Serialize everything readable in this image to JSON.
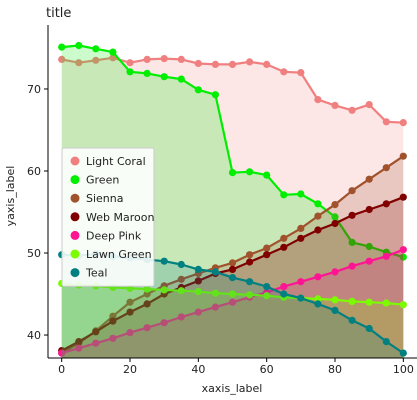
{
  "chart_data": {
    "type": "area",
    "title": "title",
    "xlabel": "xaxis_label",
    "ylabel": "yaxis_label",
    "xlim": [
      -4,
      104
    ],
    "ylim": [
      37.2,
      77.8
    ],
    "x_ticks": [
      0,
      20,
      40,
      60,
      80,
      100
    ],
    "y_ticks": [
      40,
      50,
      60,
      70
    ],
    "grid": false,
    "legend": "left",
    "series": [
      {
        "name": "Light Coral",
        "color": "#f08080",
        "x": [
          0,
          5,
          10,
          15,
          20,
          25,
          30,
          35,
          40,
          45,
          50,
          55,
          60,
          65,
          70,
          75,
          80,
          85,
          90,
          95,
          100
        ],
        "y": [
          73.6,
          73.2,
          73.5,
          73.8,
          73.2,
          73.6,
          73.7,
          73.6,
          73.1,
          73.0,
          73.0,
          73.3,
          73.0,
          72.1,
          72.0,
          68.7,
          68.0,
          67.4,
          68.1,
          66.0,
          65.9
        ]
      },
      {
        "name": "Green",
        "color": "#00ee00",
        "x": [
          0,
          5,
          10,
          15,
          20,
          25,
          30,
          35,
          40,
          45,
          50,
          55,
          60,
          65,
          70,
          75,
          80,
          85,
          90,
          95,
          100
        ],
        "y": [
          75.1,
          75.3,
          74.9,
          74.5,
          72.1,
          71.9,
          71.5,
          71.2,
          69.9,
          69.3,
          59.8,
          59.9,
          59.5,
          57.1,
          57.2,
          56.0,
          54.4,
          51.3,
          50.8,
          50.1,
          49.5
        ]
      },
      {
        "name": "Sienna",
        "color": "#a0522d",
        "x": [
          0,
          5,
          10,
          15,
          20,
          25,
          30,
          35,
          40,
          45,
          50,
          55,
          60,
          65,
          70,
          75,
          80,
          85,
          90,
          95,
          100
        ],
        "y": [
          37.8,
          39.0,
          40.5,
          42.3,
          44.0,
          45.0,
          46.0,
          46.8,
          47.5,
          48.2,
          48.8,
          49.8,
          50.6,
          51.8,
          53.0,
          54.5,
          55.9,
          57.6,
          59.0,
          60.4,
          61.8
        ]
      },
      {
        "name": "Web Maroon",
        "color": "#800000",
        "x": [
          0,
          5,
          10,
          15,
          20,
          25,
          30,
          35,
          40,
          45,
          50,
          55,
          60,
          65,
          70,
          75,
          80,
          85,
          90,
          95,
          100
        ],
        "y": [
          38.1,
          39.2,
          40.4,
          41.7,
          42.8,
          43.8,
          45.0,
          45.8,
          46.6,
          47.5,
          48.0,
          48.9,
          49.8,
          50.7,
          51.8,
          52.8,
          53.6,
          54.6,
          55.3,
          56.0,
          56.8
        ]
      },
      {
        "name": "Deep Pink",
        "color": "#ff1493",
        "x": [
          0,
          5,
          10,
          15,
          20,
          25,
          30,
          35,
          40,
          45,
          50,
          55,
          60,
          65,
          70,
          75,
          80,
          85,
          90,
          95,
          100
        ],
        "y": [
          37.8,
          38.4,
          39.0,
          39.6,
          40.3,
          40.9,
          41.5,
          42.2,
          42.8,
          43.4,
          44.0,
          44.6,
          45.2,
          45.9,
          46.5,
          47.1,
          47.7,
          48.4,
          49.0,
          49.6,
          50.4
        ]
      },
      {
        "name": "Lawn Green",
        "color": "#7cfc00",
        "x": [
          0,
          5,
          10,
          15,
          20,
          25,
          30,
          35,
          40,
          45,
          50,
          55,
          60,
          65,
          70,
          75,
          80,
          85,
          90,
          95,
          100
        ],
        "y": [
          46.3,
          46.1,
          46.0,
          45.8,
          45.7,
          45.6,
          45.5,
          45.4,
          45.3,
          45.1,
          45.0,
          44.9,
          44.8,
          44.6,
          44.5,
          44.4,
          44.3,
          44.1,
          44.0,
          43.9,
          43.7
        ]
      },
      {
        "name": "Teal",
        "color": "#008080",
        "x": [
          0,
          5,
          10,
          15,
          20,
          25,
          30,
          35,
          40,
          45,
          50,
          55,
          60,
          65,
          70,
          75,
          80,
          85,
          90,
          95,
          100
        ],
        "y": [
          49.8,
          49.7,
          49.9,
          49.6,
          49.4,
          49.2,
          49.0,
          48.6,
          48.0,
          47.7,
          47.0,
          46.5,
          45.9,
          45.0,
          44.5,
          43.8,
          43.0,
          41.8,
          40.8,
          39.2,
          37.8
        ]
      }
    ]
  }
}
